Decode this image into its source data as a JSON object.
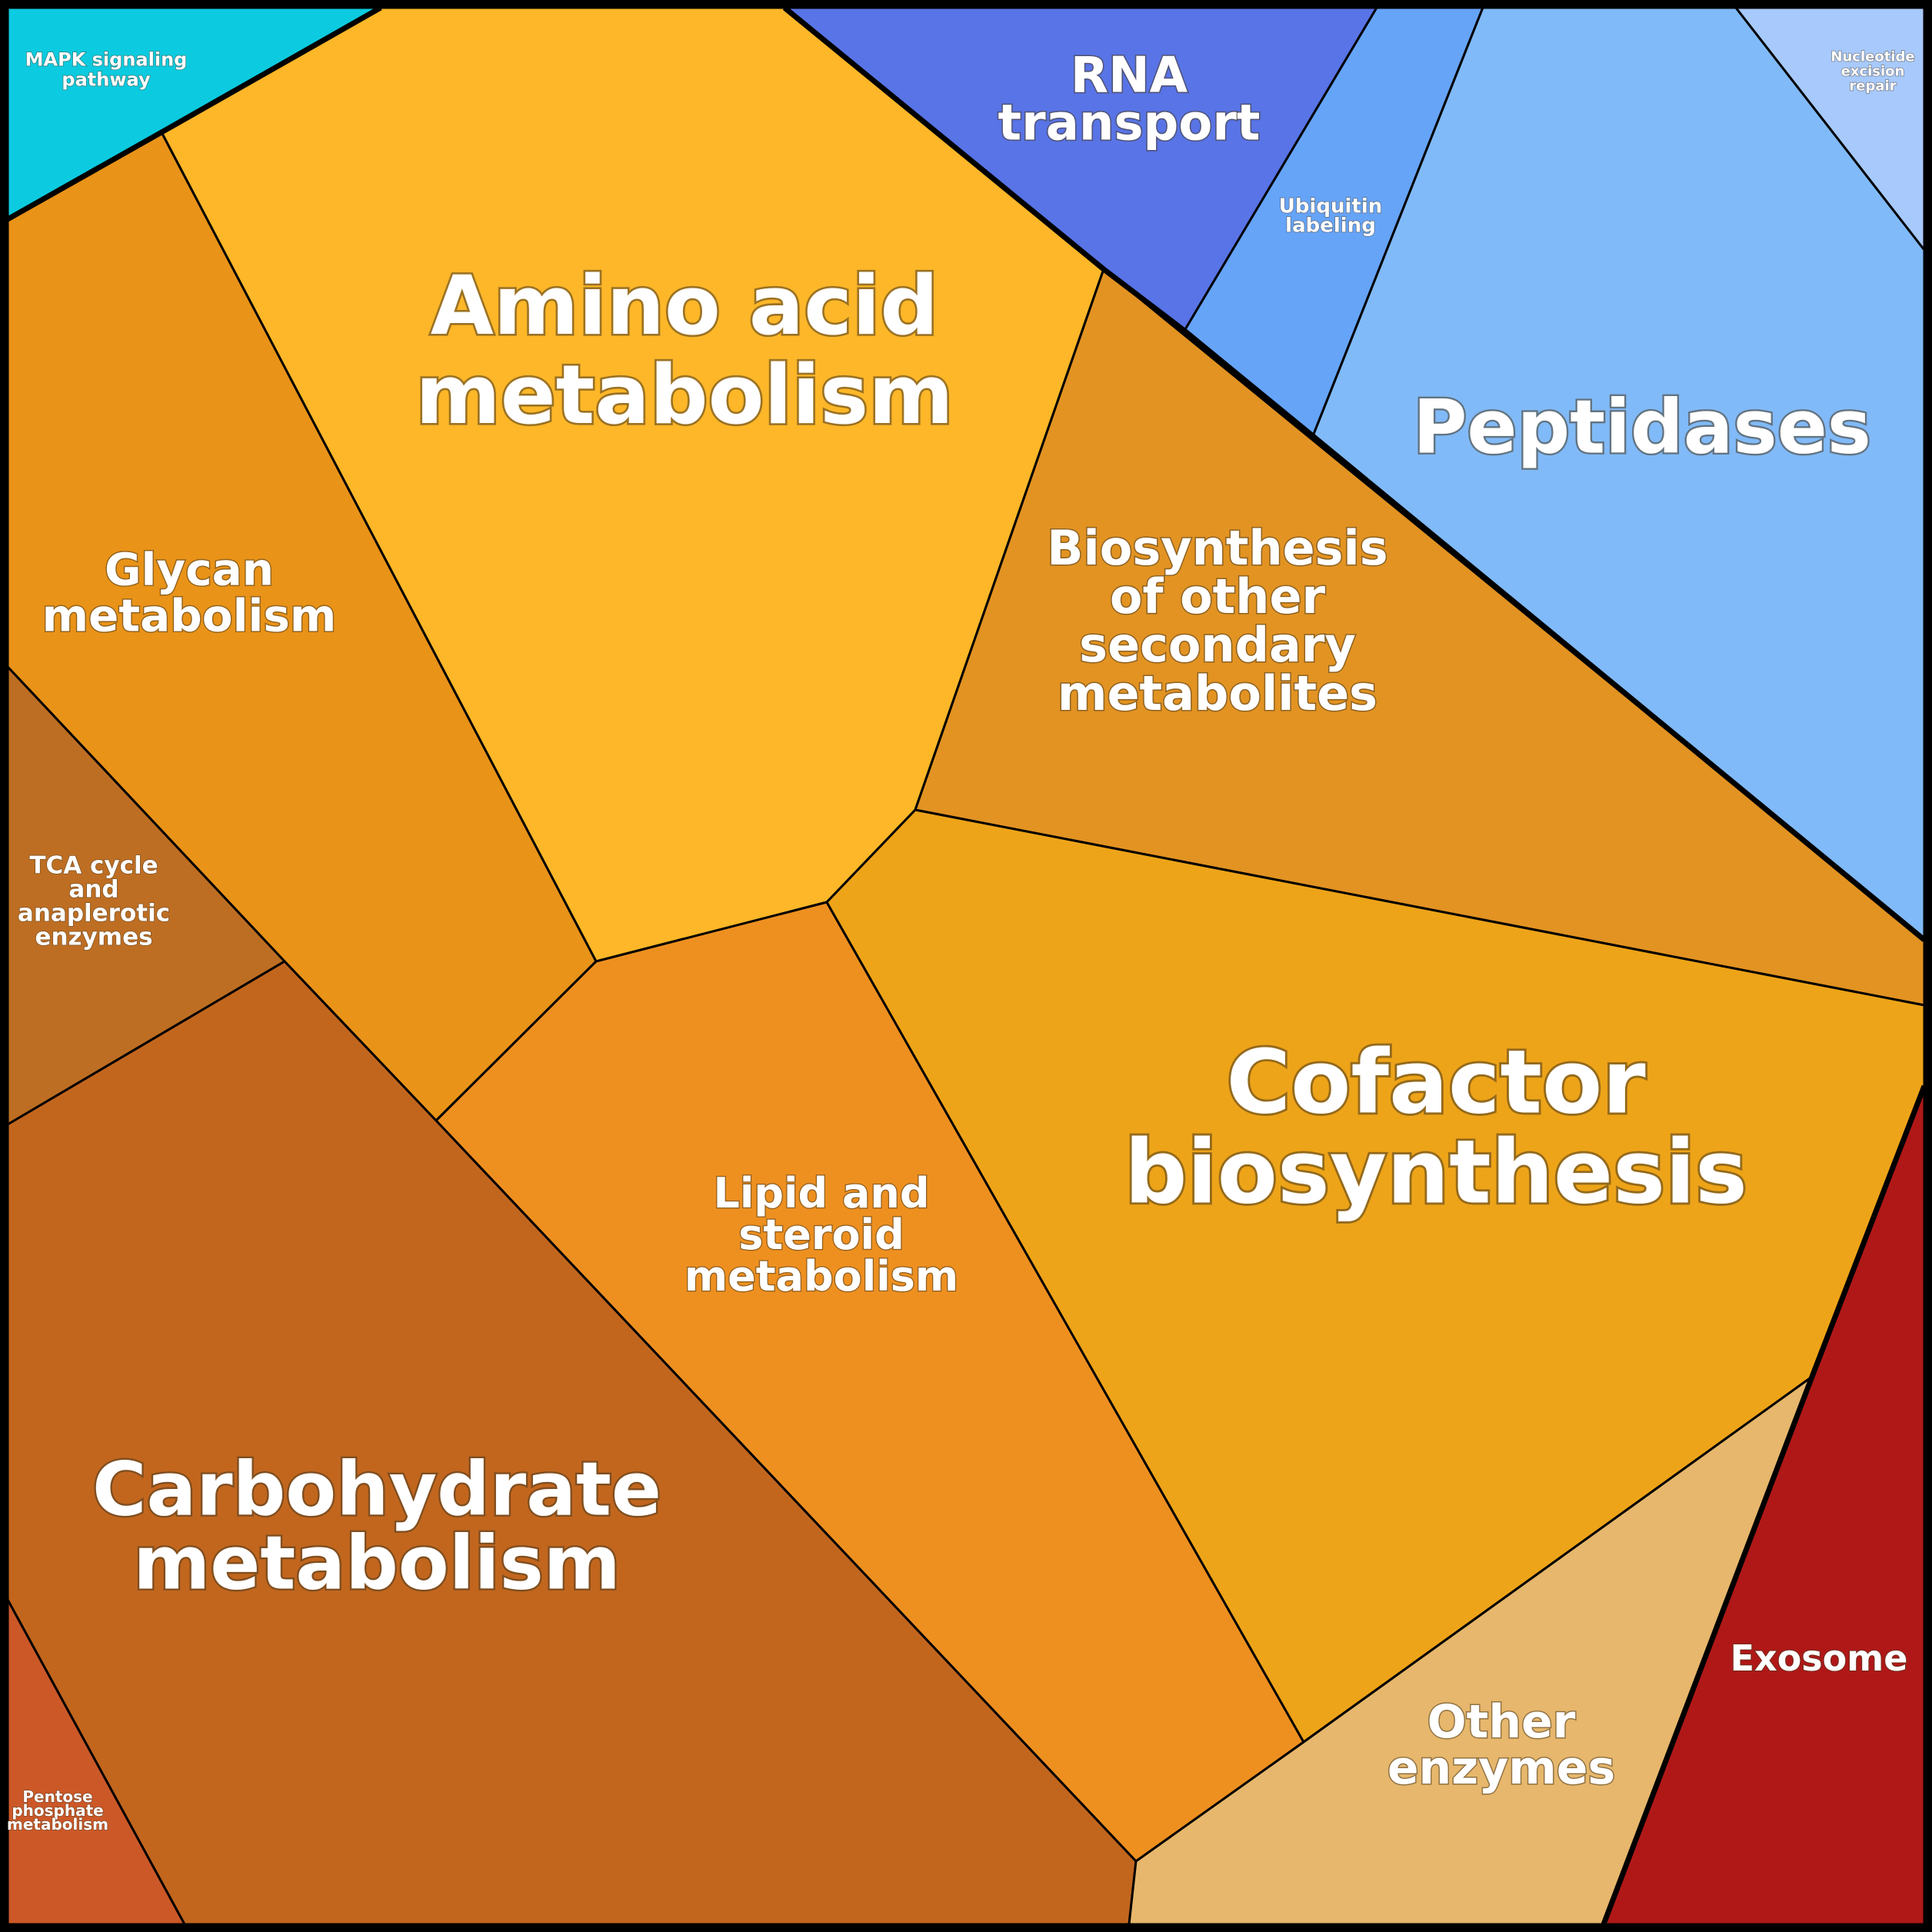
{
  "cells": [
    {
      "key": "mapk",
      "label_lines": [
        "MAPK signaling",
        "pathway"
      ],
      "color": "#0ccbe0"
    },
    {
      "key": "amino",
      "label_lines": [
        "Amino acid",
        "metabolism"
      ],
      "color": "#fdb728"
    },
    {
      "key": "rna",
      "label_lines": [
        "RNA",
        "transport"
      ],
      "color": "#5874e6"
    },
    {
      "key": "ubiquitin",
      "label_lines": [
        "Ubiquitin",
        "labeling"
      ],
      "color": "#66a4f8"
    },
    {
      "key": "peptidases",
      "label_lines": [
        "Peptidases"
      ],
      "color": "#81baf8"
    },
    {
      "key": "nucleotide",
      "label_lines": [
        "Nucleotide",
        "excision",
        "repair"
      ],
      "color": "#a7c9fc"
    },
    {
      "key": "glycan",
      "label_lines": [
        "Glycan",
        "metabolism"
      ],
      "color": "#e99318"
    },
    {
      "key": "biosynthesis_secondary",
      "label_lines": [
        "Biosynthesis",
        "of other",
        "secondary",
        "metabolites"
      ],
      "color": "#e29322"
    },
    {
      "key": "tca",
      "label_lines": [
        "TCA cycle",
        "and",
        "anaplerotic",
        "enzymes"
      ],
      "color": "#be6e22"
    },
    {
      "key": "lipid",
      "label_lines": [
        "Lipid and",
        "steroid",
        "metabolism"
      ],
      "color": "#ee9020"
    },
    {
      "key": "cofactor",
      "label_lines": [
        "Cofactor",
        "biosynthesis"
      ],
      "color": "#eea418"
    },
    {
      "key": "carbohydrate",
      "label_lines": [
        "Carbohydrate",
        "metabolism"
      ],
      "color": "#c2661e"
    },
    {
      "key": "pentose",
      "label_lines": [
        "Pentose",
        "phosphate",
        "metabolism"
      ],
      "color": "#cc5828"
    },
    {
      "key": "other",
      "label_lines": [
        "Other",
        "enzymes"
      ],
      "color": "#e6b76c"
    },
    {
      "key": "exosome",
      "label_lines": [
        "Exosome"
      ],
      "color": "#b01818"
    }
  ]
}
